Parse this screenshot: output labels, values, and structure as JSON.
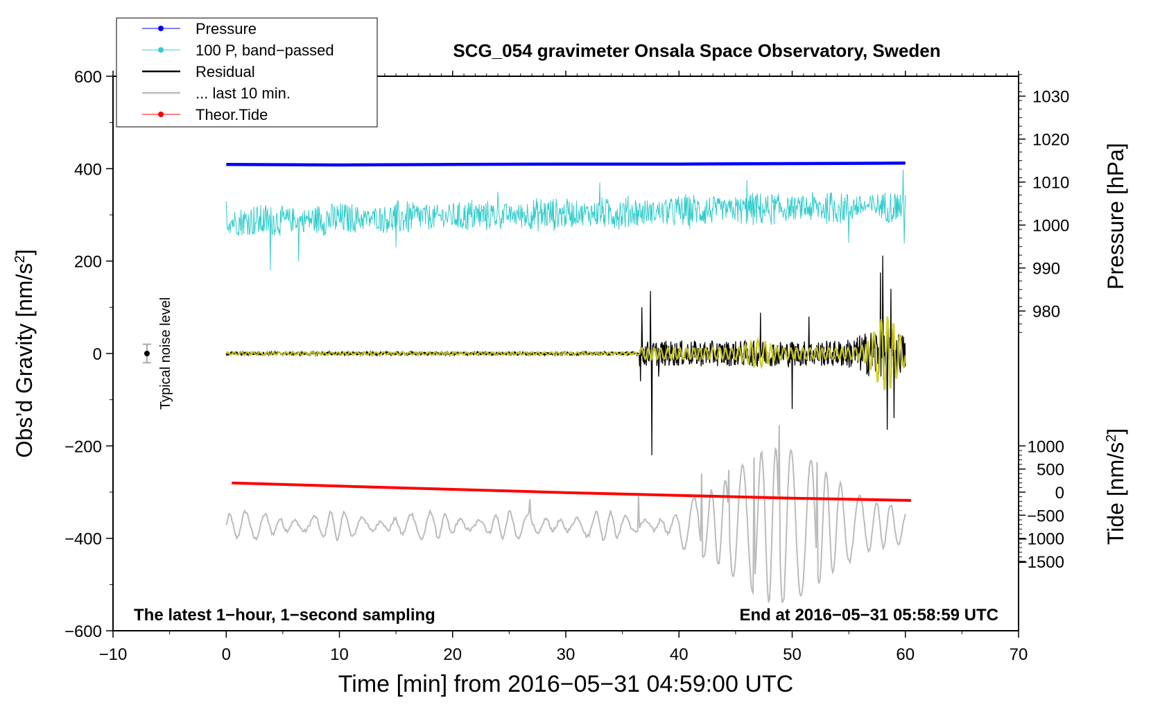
{
  "chart_data": {
    "type": "line",
    "title": "SCG_054 gravimeter Onsala Space Observatory, Sweden",
    "xlabel": "Time [min] from 2016−05−31 04:59:00 UTC",
    "ylabel": "Obs’d Gravity [nm/s",
    "ylabel_sup": "2",
    "ylabel_end": "]",
    "right_label_pressure": "Pressure [hPa]",
    "right_label_tide": "Tide [nm/s",
    "right_label_tide_sup": "2",
    "right_label_tide_end": "]",
    "xlim": [
      -10,
      70
    ],
    "ylim": [
      -600,
      600
    ],
    "x_ticks": [
      -10,
      0,
      10,
      20,
      30,
      40,
      50,
      60,
      70
    ],
    "x_tick_labels": [
      "−10",
      "0",
      "10",
      "20",
      "30",
      "40",
      "50",
      "60",
      "70"
    ],
    "y_ticks": [
      -600,
      -400,
      -200,
      0,
      200,
      400,
      600
    ],
    "y_tick_labels": [
      "−600",
      "−400",
      "−200",
      "0",
      "200",
      "400",
      "600"
    ],
    "pressure_ticks": [
      980,
      990,
      1000,
      1010,
      1020,
      1030
    ],
    "pressure_tick_labels": [
      "980",
      "990",
      "1000",
      "1010",
      "1020",
      "1030"
    ],
    "pressure_to_gravity": {
      "ref_hpa": 1000,
      "ref_gravity": 278,
      "gravity_per_hpa": 9.3
    },
    "tide_ticks": [
      -1500,
      -1000,
      -500,
      0,
      500,
      1000
    ],
    "tide_tick_labels": [
      "−1500",
      "−1000",
      "−500",
      "0",
      "500",
      "1000"
    ],
    "tide_to_gravity": {
      "ref_tide": 0,
      "ref_gravity": -300,
      "gravity_per_unit": 0.1
    },
    "legend": [
      {
        "label": "Pressure",
        "color": "#0000ff",
        "marker": true
      },
      {
        "label": "100 P, band−passed",
        "color": "#33cccc",
        "marker": true
      },
      {
        "label": "Residual",
        "color": "#000000",
        "marker": false
      },
      {
        "label": "... last 10 min.",
        "color": "#bbbbbb",
        "marker": false
      },
      {
        "label": "Theor.Tide",
        "color": "#ff0000",
        "marker": true
      }
    ],
    "legend_position": "top-left",
    "annotations": {
      "bottom_left": "The latest 1−hour, 1−second sampling",
      "bottom_right": "End at 2016−05−31 05:58:59 UTC",
      "noise_label": "Typical noise level"
    },
    "noise_bar": {
      "x": -7,
      "center": 0,
      "half_range": 20
    },
    "series": [
      {
        "name": "Pressure",
        "color": "#0000ff",
        "points": [
          [
            0,
            409
          ],
          [
            10,
            408
          ],
          [
            20,
            409
          ],
          [
            30,
            410
          ],
          [
            40,
            410
          ],
          [
            50,
            411
          ],
          [
            60,
            412
          ]
        ]
      },
      {
        "name": "100 P, band−passed",
        "color": "#33cccc",
        "x_start": 0,
        "x_end": 60,
        "baseline_start": 285,
        "baseline_end": 320,
        "bursts": [
          [
            0,
            330
          ],
          [
            3.9,
            180
          ],
          [
            6.4,
            200
          ],
          [
            15,
            230
          ],
          [
            24,
            350
          ],
          [
            33,
            370
          ],
          [
            46,
            375
          ],
          [
            55,
            240
          ],
          [
            59.8,
            398
          ],
          [
            59.9,
            238
          ]
        ]
      },
      {
        "name": "Residual",
        "color": "#000000",
        "x_start": 0,
        "x_end": 60,
        "event_start": 36.5,
        "spikes": [
          [
            36.6,
            -60
          ],
          [
            36.7,
            100
          ],
          [
            37.5,
            135
          ],
          [
            37.6,
            -220
          ],
          [
            38.2,
            -50
          ],
          [
            47.2,
            88
          ],
          [
            50.0,
            -120
          ],
          [
            51.5,
            80
          ],
          [
            57.8,
            175
          ],
          [
            58.0,
            212
          ],
          [
            58.4,
            -165
          ],
          [
            58.7,
            140
          ],
          [
            59.0,
            -140
          ]
        ]
      },
      {
        "name": "Residual (band-passed overlay)",
        "color": "#cccc22",
        "x_start": 0,
        "x_end": 60
      },
      {
        "name": "... last 10 min.",
        "color": "#bbbbbb",
        "x_start": 0,
        "x_end": 60,
        "center": -372,
        "peaks": [
          [
            26.8,
            -315
          ],
          [
            36.4,
            -308
          ],
          [
            48.9,
            -155
          ],
          [
            49.3,
            -530
          ],
          [
            52.2,
            -235
          ],
          [
            46.6,
            -225
          ],
          [
            44.4,
            -252
          ],
          [
            42.0,
            -260
          ]
        ]
      },
      {
        "name": "Theor.Tide",
        "color": "#ff0000",
        "points": [
          [
            0.5,
            -280
          ],
          [
            10,
            -287
          ],
          [
            20,
            -294
          ],
          [
            30,
            -301
          ],
          [
            40,
            -307
          ],
          [
            50,
            -313
          ],
          [
            60.5,
            -318
          ]
        ]
      }
    ]
  }
}
